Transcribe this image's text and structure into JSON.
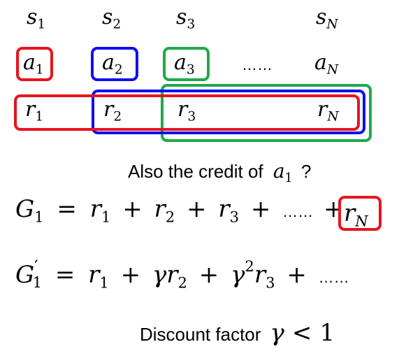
{
  "states": [
    {
      "base": "s",
      "sub": "1"
    },
    {
      "base": "s",
      "sub": "2"
    },
    {
      "base": "s",
      "sub": "3"
    },
    {
      "base": "s",
      "sub": "N"
    }
  ],
  "actions": [
    {
      "base": "a",
      "sub": "1"
    },
    {
      "base": "a",
      "sub": "2"
    },
    {
      "base": "a",
      "sub": "3"
    },
    {
      "base": "a",
      "sub": "N"
    }
  ],
  "rewards": [
    {
      "base": "r",
      "sub": "1"
    },
    {
      "base": "r",
      "sub": "2"
    },
    {
      "base": "r",
      "sub": "3"
    },
    {
      "base": "r",
      "sub": "N"
    }
  ],
  "ellipsis": "……",
  "colors": {
    "red": "#e8141e",
    "blue": "#1010ee",
    "green": "#1faa4a"
  },
  "credit_question": {
    "prefix": "Also the credit of",
    "symbol": {
      "base": "a",
      "sub": "1"
    },
    "suffix": "?"
  },
  "eq1": {
    "lhs": {
      "base": "G",
      "sub": "1"
    },
    "eq": "=",
    "plus": "+",
    "terms": [
      {
        "base": "r",
        "sub": "1"
      },
      {
        "base": "r",
        "sub": "2"
      },
      {
        "base": "r",
        "sub": "3"
      }
    ],
    "ellipsis": "……",
    "last": {
      "base": "r",
      "sub": "N"
    }
  },
  "eq2": {
    "lhs": {
      "base": "G",
      "prime": "′",
      "sub": "1"
    },
    "eq": "=",
    "plus": "+",
    "gamma": "γ",
    "power": "2",
    "terms": [
      {
        "base": "r",
        "sub": "1"
      },
      {
        "base": "r",
        "sub": "2"
      },
      {
        "base": "r",
        "sub": "3"
      }
    ],
    "ellipsis": "……"
  },
  "discount": {
    "label": "Discount factor",
    "gamma": "γ",
    "lt": "<",
    "one": "1"
  }
}
